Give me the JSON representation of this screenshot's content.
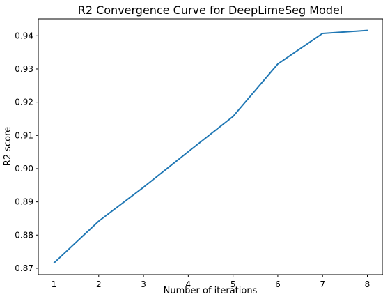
{
  "chart_data": {
    "type": "line",
    "title": "R2 Convergence Curve for DeepLimeSeg Model",
    "xlabel": "Number of iterations",
    "ylabel": "R2 score",
    "x": [
      1,
      2,
      3,
      4,
      5,
      6,
      7,
      8
    ],
    "series": [
      {
        "values": [
          0.8716,
          0.8842,
          0.8944,
          0.9051,
          0.9157,
          0.9315,
          0.9407,
          0.9416
        ],
        "color": "#1f77b4"
      }
    ],
    "xlim": [
      0.65,
      8.35
    ],
    "ylim": [
      0.8681,
      0.9451
    ],
    "xticks": [
      "1",
      "2",
      "3",
      "4",
      "5",
      "6",
      "7",
      "8"
    ],
    "yticks": [
      "0.87",
      "0.88",
      "0.89",
      "0.90",
      "0.91",
      "0.92",
      "0.93",
      "0.94"
    ],
    "grid": false,
    "legend": "none"
  }
}
